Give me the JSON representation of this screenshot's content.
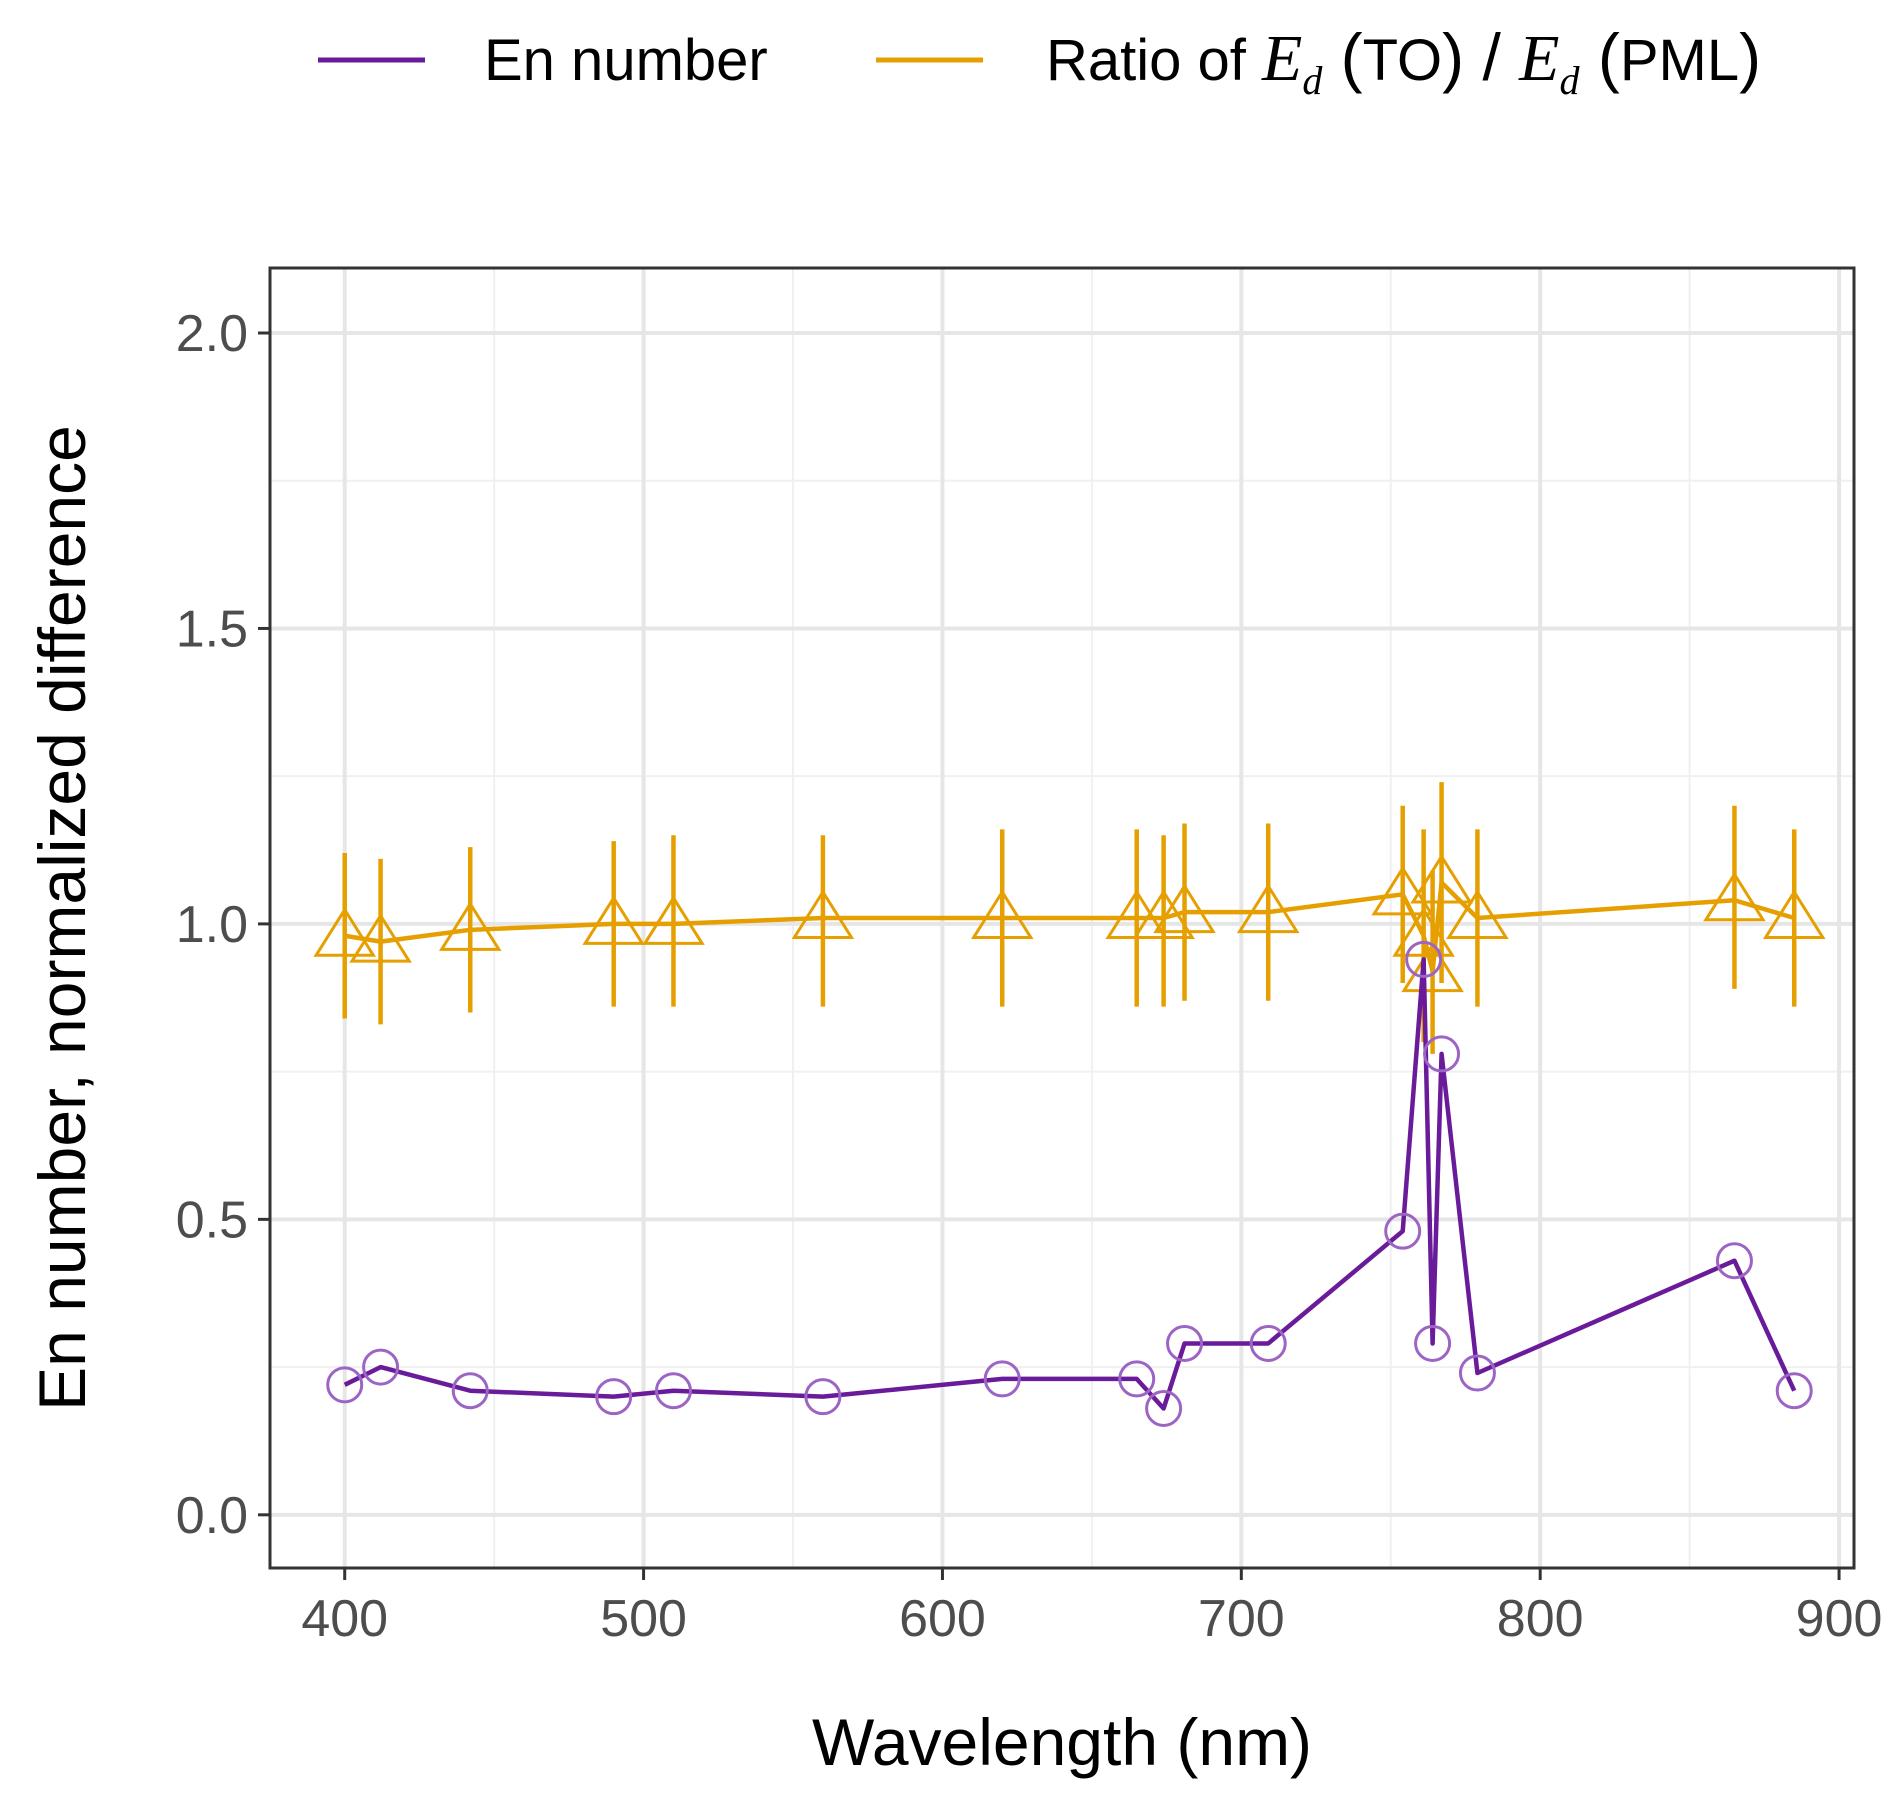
{
  "chart_data": {
    "type": "line",
    "xlabel": "Wavelength (nm)",
    "ylabel": "En number, normalized difference",
    "xlim": [
      375,
      905
    ],
    "ylim": [
      -0.09,
      2.11
    ],
    "x_ticks": [
      400,
      500,
      600,
      700,
      800,
      900
    ],
    "y_ticks": [
      0.0,
      0.5,
      1.0,
      1.5,
      2.0
    ],
    "x_tick_labels": [
      "400",
      "500",
      "600",
      "700",
      "800",
      "900"
    ],
    "y_tick_labels": [
      "0.0",
      "0.5",
      "1.0",
      "1.5",
      "2.0"
    ],
    "grid": true,
    "legend_position": "top",
    "legend": {
      "en_label": "En number",
      "ratio_prefix": "Ratio of",
      "E": "E",
      "d": "d",
      "TO": "TO",
      "PML": "PML"
    },
    "series": [
      {
        "name": "En number",
        "color": "#6a1b9a",
        "marker": "circle-open",
        "x": [
          400,
          412,
          442,
          490,
          510,
          560,
          620,
          665,
          674,
          681,
          709,
          754,
          761,
          764,
          767,
          779,
          865,
          885
        ],
        "y": [
          0.22,
          0.25,
          0.21,
          0.2,
          0.21,
          0.2,
          0.23,
          0.23,
          0.18,
          0.29,
          0.29,
          0.48,
          0.94,
          0.29,
          0.78,
          0.24,
          0.43,
          0.21
        ]
      },
      {
        "name": "Ratio of Ed(TO)/Ed(PML)",
        "color": "#e69f00",
        "marker": "triangle-open",
        "x": [
          400,
          412,
          442,
          490,
          510,
          560,
          620,
          665,
          674,
          681,
          709,
          754,
          761,
          764,
          767,
          779,
          865,
          885
        ],
        "y": [
          0.98,
          0.97,
          0.99,
          1.0,
          1.0,
          1.01,
          1.01,
          1.01,
          1.01,
          1.02,
          1.02,
          1.05,
          0.98,
          0.92,
          1.07,
          1.01,
          1.04,
          1.01
        ],
        "err_low": [
          0.84,
          0.83,
          0.85,
          0.86,
          0.86,
          0.86,
          0.86,
          0.86,
          0.86,
          0.87,
          0.87,
          0.9,
          0.8,
          0.78,
          0.9,
          0.86,
          0.89,
          0.86
        ],
        "err_high": [
          1.12,
          1.11,
          1.13,
          1.14,
          1.15,
          1.15,
          1.16,
          1.16,
          1.15,
          1.17,
          1.17,
          1.2,
          1.16,
          1.09,
          1.24,
          1.16,
          1.2,
          1.16
        ]
      }
    ]
  }
}
